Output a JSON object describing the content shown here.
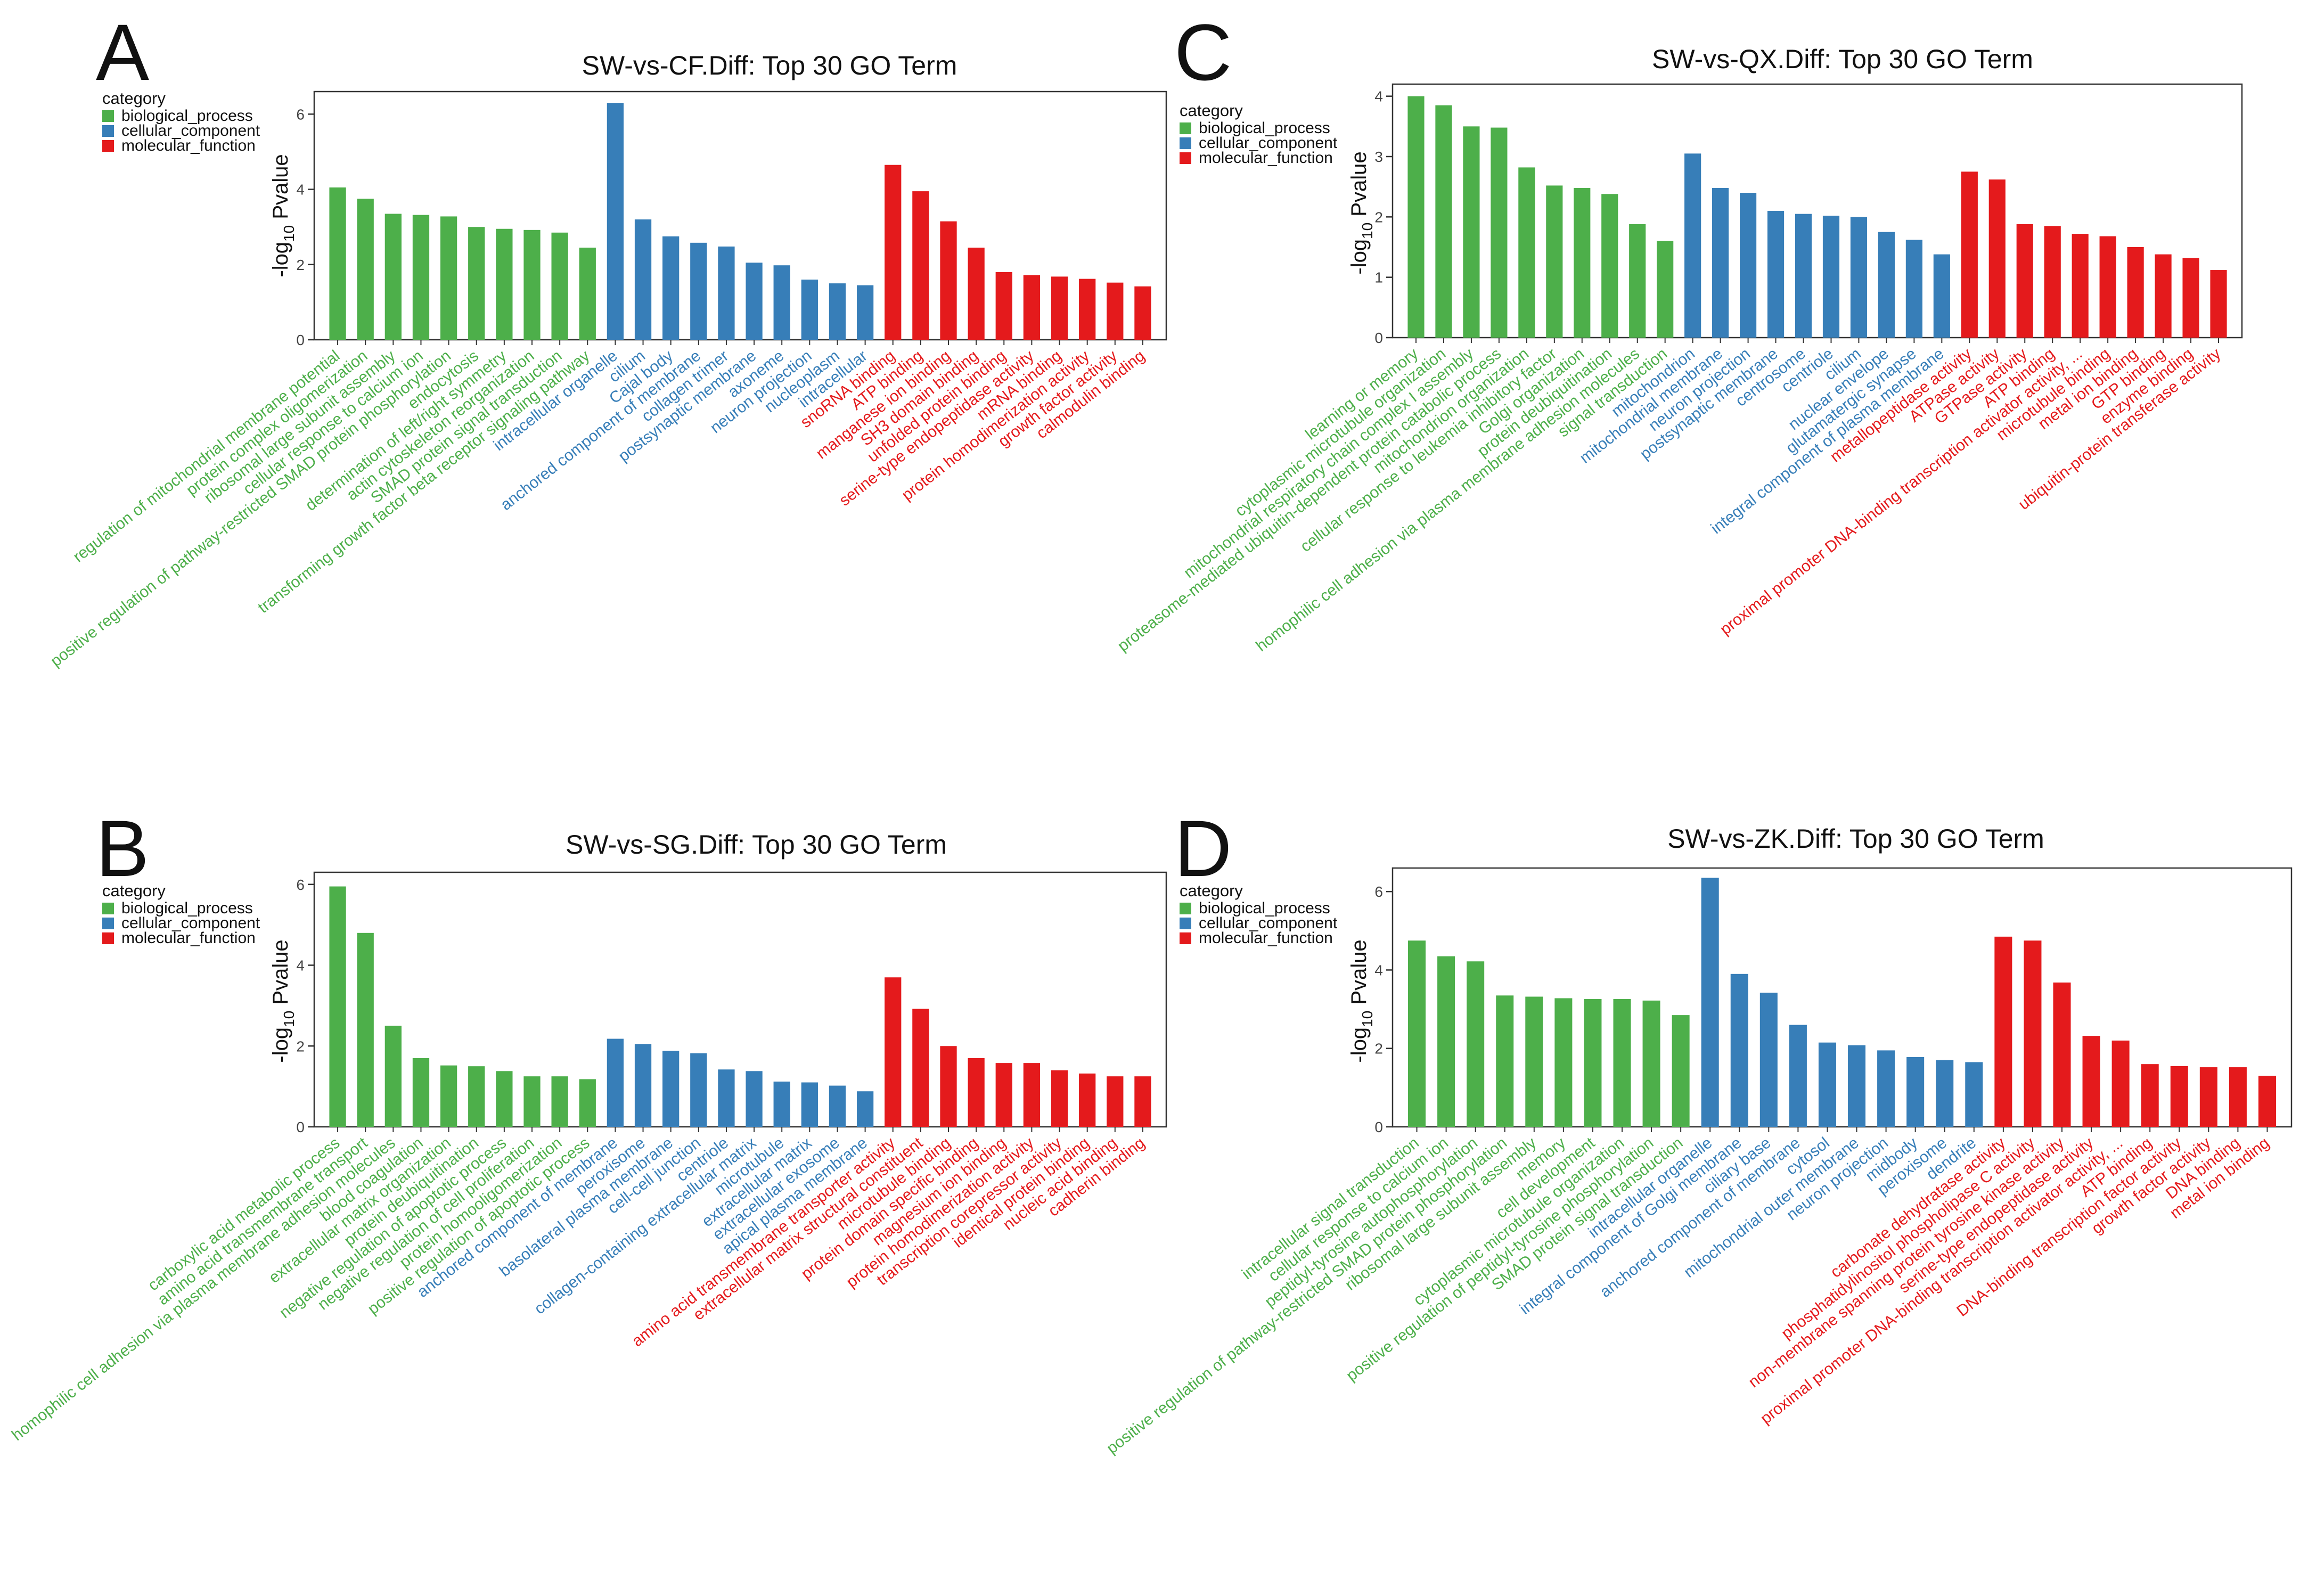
{
  "legend": {
    "title": "category",
    "items": [
      {
        "label": "biological_process",
        "color": "#4DAF4A"
      },
      {
        "label": "cellular_component",
        "color": "#377EB8"
      },
      {
        "label": "molecular_function",
        "color": "#E41A1C"
      }
    ]
  },
  "ylabel": "-log10 Pvalue",
  "chart_data": [
    {
      "panel": "A",
      "type": "bar",
      "title": "SW-vs-CF.Diff: Top 30 GO Term",
      "ylabel": "-log10 Pvalue",
      "ylim": [
        0,
        6.6
      ],
      "yticks": [
        "0",
        "2",
        "4",
        "6"
      ],
      "categories": [
        "regulation of mitochondrial membrane potential",
        "protein complex oligomerization",
        "ribosomal large subunit assembly",
        "cellular response to calcium ion",
        "positive regulation of pathway-restricted SMAD protein phosphorylation",
        "endocytosis",
        "determination of left/right symmetry",
        "actin cytoskeleton reorganization",
        "SMAD protein signal transduction",
        "transforming growth factor beta receptor signaling pathway",
        "intracellular organelle",
        "cilium",
        "Cajal body",
        "anchored component of membrane",
        "collagen trimer",
        "postsynaptic membrane",
        "axoneme",
        "neuron projection",
        "nucleoplasm",
        "intracellular",
        "snoRNA binding",
        "ATP binding",
        "manganese ion binding",
        "SH3 domain binding",
        "unfolded protein binding",
        "serine-type endopeptidase activity",
        "mRNA binding",
        "protein homodimerization activity",
        "growth factor activity",
        "calmodulin binding"
      ],
      "values": [
        4.05,
        3.75,
        3.35,
        3.32,
        3.28,
        3.0,
        2.95,
        2.92,
        2.85,
        2.45,
        6.3,
        3.2,
        2.75,
        2.58,
        2.48,
        2.05,
        1.98,
        1.6,
        1.5,
        1.45,
        4.65,
        3.95,
        3.15,
        2.45,
        1.8,
        1.72,
        1.68,
        1.62,
        1.52,
        1.42
      ],
      "groups": [
        "BP",
        "BP",
        "BP",
        "BP",
        "BP",
        "BP",
        "BP",
        "BP",
        "BP",
        "BP",
        "CC",
        "CC",
        "CC",
        "CC",
        "CC",
        "CC",
        "CC",
        "CC",
        "CC",
        "CC",
        "MF",
        "MF",
        "MF",
        "MF",
        "MF",
        "MF",
        "MF",
        "MF",
        "MF",
        "MF"
      ]
    },
    {
      "panel": "B",
      "type": "bar",
      "title": "SW-vs-SG.Diff: Top 30 GO Term",
      "ylabel": "-log10 Pvalue",
      "ylim": [
        0,
        6.3
      ],
      "yticks": [
        "0",
        "2",
        "4",
        "6"
      ],
      "categories": [
        "carboxylic acid metabolic process",
        "amino acid transmembrane transport",
        "homophilic cell adhesion via plasma membrane adhesion molecules",
        "blood coagulation",
        "extracellular matrix organization",
        "protein deubiquitination",
        "negative regulation of apoptotic process",
        "negative regulation of cell proliferation",
        "protein homooligomerization",
        "positive regulation of apoptotic process",
        "anchored component of membrane",
        "peroxisome",
        "basolateral plasma membrane",
        "cell-cell junction",
        "centriole",
        "collagen-containing extracellular matrix",
        "microtubule",
        "extracellular matrix",
        "extracellular exosome",
        "apical plasma membrane",
        "amino acid transmembrane transporter activity",
        "extracellular matrix structural constituent",
        "microtubule binding",
        "protein domain specific binding",
        "magnesium ion binding",
        "protein homodimerization activity",
        "transcription corepressor activity",
        "identical protein binding",
        "nucleic acid binding",
        "cadherin binding"
      ],
      "values": [
        5.95,
        4.8,
        2.5,
        1.7,
        1.52,
        1.5,
        1.38,
        1.25,
        1.25,
        1.18,
        2.18,
        2.05,
        1.88,
        1.82,
        1.42,
        1.38,
        1.12,
        1.1,
        1.02,
        0.88,
        3.7,
        2.92,
        2.0,
        1.7,
        1.58,
        1.58,
        1.4,
        1.32,
        1.25,
        1.25
      ],
      "groups": [
        "BP",
        "BP",
        "BP",
        "BP",
        "BP",
        "BP",
        "BP",
        "BP",
        "BP",
        "BP",
        "CC",
        "CC",
        "CC",
        "CC",
        "CC",
        "CC",
        "CC",
        "CC",
        "CC",
        "CC",
        "MF",
        "MF",
        "MF",
        "MF",
        "MF",
        "MF",
        "MF",
        "MF",
        "MF",
        "MF"
      ]
    },
    {
      "panel": "C",
      "type": "bar",
      "title": "SW-vs-QX.Diff: Top 30 GO Term",
      "ylabel": "-log10 Pvalue",
      "ylim": [
        0,
        4.2
      ],
      "yticks": [
        "0",
        "1",
        "2",
        "3",
        "4"
      ],
      "categories": [
        "learning or memory",
        "cytoplasmic microtubule organization",
        "mitochondrial respiratory chain complex I assembly",
        "proteasome-mediated ubiquitin-dependent protein catabolic process",
        "mitochondrion organization",
        "cellular response to leukemia inhibitory factor",
        "Golgi organization",
        "protein deubiquitination",
        "homophilic cell adhesion via plasma membrane adhesion molecules",
        "signal transduction",
        "mitochondrion",
        "mitochondrial membrane",
        "neuron projection",
        "postsynaptic membrane",
        "centrosome",
        "centriole",
        "cilium",
        "nuclear envelope",
        "glutamatergic synapse",
        "integral component of plasma membrane",
        "metallopeptidase activity",
        "ATPase activity",
        "GTPase activity",
        "ATP binding",
        "proximal promoter DNA-binding transcription activator activity, ...",
        "microtubule binding",
        "metal ion binding",
        "GTP binding",
        "enzyme binding",
        "ubiquitin-protein transferase activity"
      ],
      "values": [
        4.0,
        3.85,
        3.5,
        3.48,
        2.82,
        2.52,
        2.48,
        2.38,
        1.88,
        1.6,
        3.05,
        2.48,
        2.4,
        2.1,
        2.05,
        2.02,
        2.0,
        1.75,
        1.62,
        1.38,
        2.75,
        2.62,
        1.88,
        1.85,
        1.72,
        1.68,
        1.5,
        1.38,
        1.32,
        1.12
      ],
      "groups": [
        "BP",
        "BP",
        "BP",
        "BP",
        "BP",
        "BP",
        "BP",
        "BP",
        "BP",
        "BP",
        "CC",
        "CC",
        "CC",
        "CC",
        "CC",
        "CC",
        "CC",
        "CC",
        "CC",
        "CC",
        "MF",
        "MF",
        "MF",
        "MF",
        "MF",
        "MF",
        "MF",
        "MF",
        "MF",
        "MF"
      ]
    },
    {
      "panel": "D",
      "type": "bar",
      "title": "SW-vs-ZK.Diff: Top 30 GO Term",
      "ylabel": "-log10 Pvalue",
      "ylim": [
        0,
        6.6
      ],
      "yticks": [
        "0",
        "2",
        "4",
        "6"
      ],
      "categories": [
        "intracellular signal transduction",
        "cellular response to calcium ion",
        "peptidyl-tyrosine autophosphorylation",
        "positive regulation of pathway-restricted SMAD protein phosphorylation",
        "ribosomal large subunit assembly",
        "memory",
        "cell development",
        "cytoplasmic microtubule organization",
        "positive regulation of peptidyl-tyrosine phosphorylation",
        "SMAD protein signal transduction",
        "intracellular organelle",
        "integral component of Golgi membrane",
        "ciliary base",
        "anchored component of membrane",
        "cytosol",
        "mitochondrial outer membrane",
        "neuron projection",
        "midbody",
        "peroxisome",
        "dendrite",
        "carbonate dehydratase activity",
        "phosphatidylinositol phospholipase C activity",
        "non-membrane spanning protein tyrosine kinase activity",
        "serine-type endopeptidase activity",
        "proximal promoter DNA-binding transcription activator activity, ...",
        "ATP binding",
        "DNA-binding transcription factor activity",
        "growth factor activity",
        "DNA binding",
        "metal ion binding"
      ],
      "values": [
        4.75,
        4.35,
        4.22,
        3.35,
        3.32,
        3.28,
        3.26,
        3.26,
        3.22,
        2.85,
        6.35,
        3.9,
        3.42,
        2.6,
        2.15,
        2.08,
        1.95,
        1.78,
        1.7,
        1.65,
        4.85,
        4.75,
        3.68,
        2.32,
        2.2,
        1.6,
        1.55,
        1.52,
        1.52,
        1.3
      ],
      "groups": [
        "BP",
        "BP",
        "BP",
        "BP",
        "BP",
        "BP",
        "BP",
        "BP",
        "BP",
        "BP",
        "CC",
        "CC",
        "CC",
        "CC",
        "CC",
        "CC",
        "CC",
        "CC",
        "CC",
        "CC",
        "MF",
        "MF",
        "MF",
        "MF",
        "MF",
        "MF",
        "MF",
        "MF",
        "MF",
        "MF"
      ]
    }
  ]
}
